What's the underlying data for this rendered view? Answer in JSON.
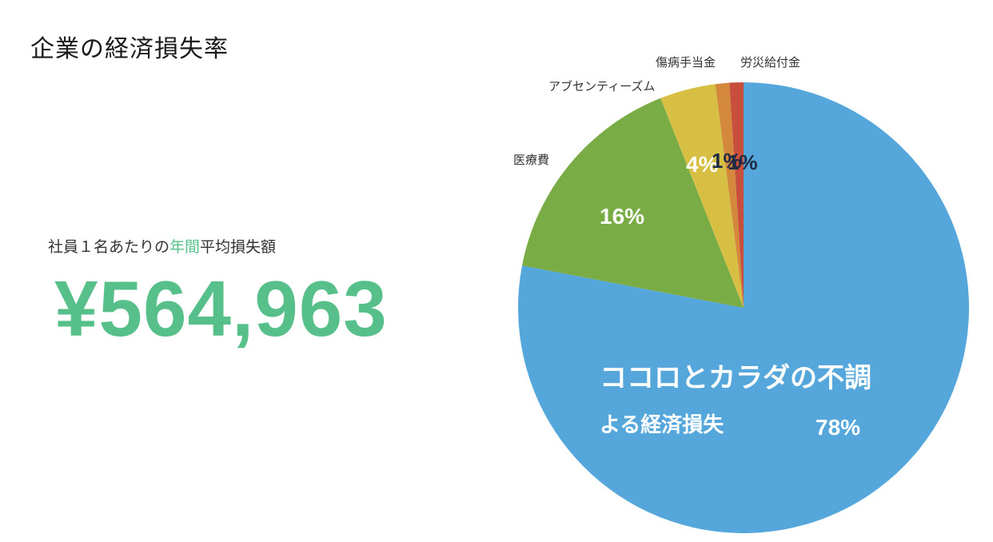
{
  "page": {
    "title": "企業の経済損失率"
  },
  "summary": {
    "label_prefix": "社員１名あたりの",
    "label_accent": "年間",
    "label_suffix": "平均損失額",
    "amount": "¥564,963"
  },
  "colors": {
    "accent": "#57c08a"
  },
  "chart_data": {
    "type": "pie",
    "title": "",
    "start_angle_deg": 0,
    "direction": "clockwise",
    "slices": [
      {
        "name": "ココロとカラダの不調による経済損失",
        "value": 78,
        "value_label": "78%",
        "inner_label_lines": [
          "ココロとカラダの不調",
          "よる経済損失"
        ],
        "color": "#55a7db"
      },
      {
        "name": "医療費",
        "value": 16,
        "value_label": "16%",
        "color": "#7aac45"
      },
      {
        "name": "アブセンティーズム",
        "value": 4,
        "value_label": "4%",
        "color": "#d6bf42"
      },
      {
        "name": "傷病手当金",
        "value": 1,
        "value_label": "1%",
        "color": "#d3883c"
      },
      {
        "name": "労災給付金",
        "value": 1,
        "value_label": "1%",
        "color": "#c84f3b"
      }
    ]
  }
}
